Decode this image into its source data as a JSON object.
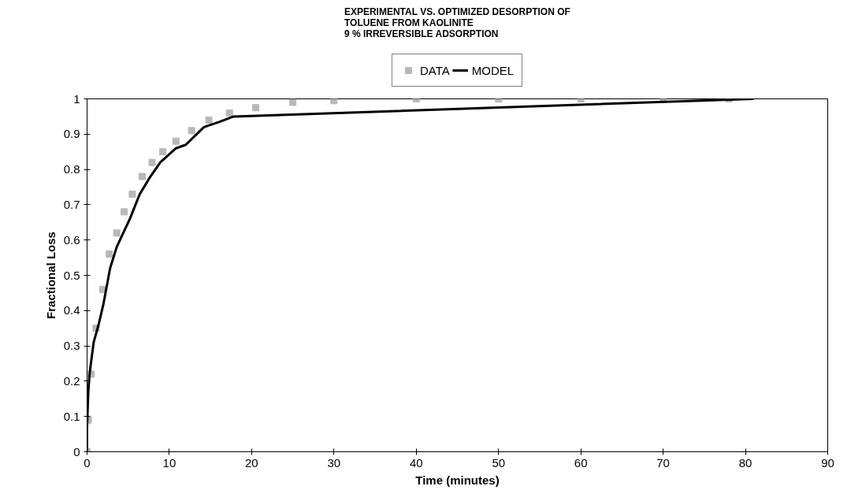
{
  "chart_data": {
    "type": "scatter",
    "title": "EXPERIMENTAL VS. OPTIMIZED DESORPTION OF\nTOLUENE FROM KAOLINITE\n9 % IRREVERSIBLE ADSORPTION",
    "xlabel": "Time (minutes)",
    "ylabel": "Fractional Loss",
    "xlim": [
      0,
      90
    ],
    "xticks": [
      0,
      10,
      20,
      30,
      40,
      50,
      60,
      70,
      80,
      90
    ],
    "ylim": [
      0,
      1
    ],
    "yticks": [
      0,
      0.1,
      0.2,
      0.3,
      0.4,
      0.5,
      0.6,
      0.7,
      0.8,
      0.9,
      1
    ],
    "grid": false,
    "legend": "top",
    "series": [
      {
        "name": "DATA",
        "marker": "square",
        "color": "#b8b8b8",
        "x": [
          0,
          0.15,
          0.5,
          1.1,
          1.9,
          2.7,
          3.6,
          4.5,
          5.5,
          6.7,
          7.9,
          9.2,
          10.8,
          12.7,
          14.8,
          17.3,
          20.5,
          25,
          30,
          40,
          50,
          60,
          70,
          78
        ],
        "values": [
          0,
          0.09,
          0.22,
          0.35,
          0.46,
          0.56,
          0.62,
          0.68,
          0.73,
          0.78,
          0.82,
          0.85,
          0.88,
          0.91,
          0.94,
          0.96,
          0.975,
          0.99,
          0.995,
          1.0,
          1.0,
          1.0,
          1.0,
          1.0
        ]
      },
      {
        "name": "MODEL",
        "type": "line",
        "line_style": "solid",
        "color": "#000000",
        "x": [
          0,
          0,
          0.15,
          0.3,
          0.8,
          1.4,
          2.0,
          2.8,
          3.6,
          4.2,
          5.2,
          6.4,
          7.7,
          8.9,
          10.8,
          12,
          14.2,
          16.1,
          17.8,
          81
        ],
        "values": [
          0,
          0.07,
          0.17,
          0.22,
          0.31,
          0.36,
          0.42,
          0.52,
          0.58,
          0.61,
          0.66,
          0.73,
          0.78,
          0.82,
          0.86,
          0.87,
          0.92,
          0.935,
          0.95,
          1.0
        ]
      }
    ]
  }
}
